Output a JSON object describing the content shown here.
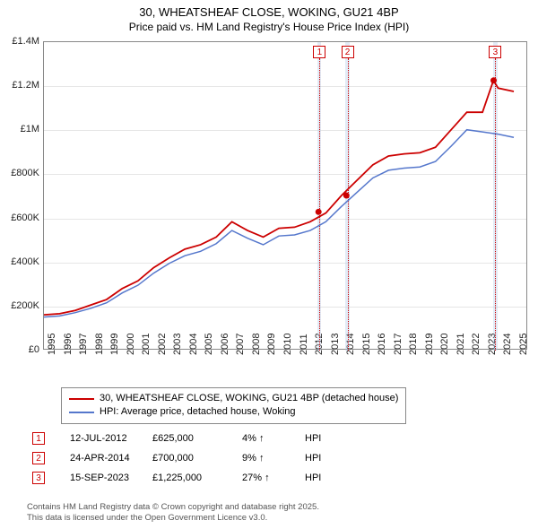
{
  "title": "30, WHEATSHEAF CLOSE, WOKING, GU21 4BP",
  "subtitle": "Price paid vs. HM Land Registry's House Price Index (HPI)",
  "chart": {
    "type": "line",
    "x_years": [
      1995,
      1996,
      1997,
      1998,
      1999,
      2000,
      2001,
      2002,
      2003,
      2004,
      2005,
      2006,
      2007,
      2008,
      2009,
      2010,
      2011,
      2012,
      2013,
      2014,
      2015,
      2016,
      2017,
      2018,
      2019,
      2020,
      2021,
      2022,
      2023,
      2024,
      2025
    ],
    "ylim": [
      0,
      1400000
    ],
    "ytick_step": 200000,
    "ytick_labels": [
      "£0",
      "£200K",
      "£400K",
      "£600K",
      "£800K",
      "£1M",
      "£1.2M",
      "£1.4M"
    ],
    "xlim": [
      1995,
      2025.8
    ],
    "background_color": "#ffffff",
    "grid_color": "#e6e6e6",
    "border_color": "#888888",
    "series": [
      {
        "name": "property",
        "label": "30, WHEATSHEAF CLOSE, WOKING, GU21 4BP (detached house)",
        "color": "#cc0000",
        "width": 1.8,
        "points": [
          [
            1995,
            155000
          ],
          [
            1996,
            160000
          ],
          [
            1997,
            175000
          ],
          [
            1998,
            200000
          ],
          [
            1999,
            225000
          ],
          [
            2000,
            275000
          ],
          [
            2001,
            310000
          ],
          [
            2002,
            370000
          ],
          [
            2003,
            415000
          ],
          [
            2004,
            455000
          ],
          [
            2005,
            475000
          ],
          [
            2006,
            510000
          ],
          [
            2007,
            580000
          ],
          [
            2008,
            540000
          ],
          [
            2009,
            510000
          ],
          [
            2010,
            550000
          ],
          [
            2011,
            555000
          ],
          [
            2012,
            580000
          ],
          [
            2013,
            620000
          ],
          [
            2014,
            700000
          ],
          [
            2015,
            770000
          ],
          [
            2016,
            840000
          ],
          [
            2017,
            880000
          ],
          [
            2018,
            890000
          ],
          [
            2019,
            895000
          ],
          [
            2020,
            920000
          ],
          [
            2021,
            1000000
          ],
          [
            2022,
            1080000
          ],
          [
            2023,
            1080000
          ],
          [
            2023.7,
            1225000
          ],
          [
            2024,
            1190000
          ],
          [
            2025,
            1175000
          ]
        ]
      },
      {
        "name": "hpi",
        "label": "HPI: Average price, detached house, Woking",
        "color": "#5577cc",
        "width": 1.5,
        "points": [
          [
            1995,
            145000
          ],
          [
            1996,
            150000
          ],
          [
            1997,
            165000
          ],
          [
            1998,
            185000
          ],
          [
            1999,
            210000
          ],
          [
            2000,
            255000
          ],
          [
            2001,
            290000
          ],
          [
            2002,
            345000
          ],
          [
            2003,
            390000
          ],
          [
            2004,
            425000
          ],
          [
            2005,
            445000
          ],
          [
            2006,
            480000
          ],
          [
            2007,
            540000
          ],
          [
            2008,
            505000
          ],
          [
            2009,
            475000
          ],
          [
            2010,
            515000
          ],
          [
            2011,
            520000
          ],
          [
            2012,
            540000
          ],
          [
            2013,
            580000
          ],
          [
            2014,
            650000
          ],
          [
            2015,
            715000
          ],
          [
            2016,
            780000
          ],
          [
            2017,
            815000
          ],
          [
            2018,
            825000
          ],
          [
            2019,
            830000
          ],
          [
            2020,
            855000
          ],
          [
            2021,
            925000
          ],
          [
            2022,
            1000000
          ],
          [
            2023,
            990000
          ],
          [
            2024,
            980000
          ],
          [
            2025,
            965000
          ]
        ]
      }
    ],
    "sale_markers": [
      {
        "n": "1",
        "year": 2012.53,
        "price": 625000,
        "color": "#cc0000"
      },
      {
        "n": "2",
        "year": 2014.31,
        "price": 700000,
        "color": "#cc0000"
      },
      {
        "n": "3",
        "year": 2023.71,
        "price": 1225000,
        "color": "#cc0000"
      }
    ],
    "bands": [
      {
        "from": 2012.4,
        "to": 2012.65,
        "color": "#c9dced"
      },
      {
        "from": 2014.15,
        "to": 2014.45,
        "color": "#c9dced"
      },
      {
        "from": 2023.55,
        "to": 2023.85,
        "color": "#c9dced"
      }
    ]
  },
  "legend": {
    "series1_label": "30, WHEATSHEAF CLOSE, WOKING, GU21 4BP (detached house)",
    "series2_label": "HPI: Average price, detached house, Woking"
  },
  "sales": [
    {
      "n": "1",
      "date": "12-JUL-2012",
      "price": "£625,000",
      "diff": "4%",
      "arrow": "↑",
      "vs": "HPI",
      "color": "#cc0000"
    },
    {
      "n": "2",
      "date": "24-APR-2014",
      "price": "£700,000",
      "diff": "9%",
      "arrow": "↑",
      "vs": "HPI",
      "color": "#cc0000"
    },
    {
      "n": "3",
      "date": "15-SEP-2023",
      "price": "£1,225,000",
      "diff": "27%",
      "arrow": "↑",
      "vs": "HPI",
      "color": "#cc0000"
    }
  ],
  "footer": {
    "line1": "Contains HM Land Registry data © Crown copyright and database right 2025.",
    "line2": "This data is licensed under the Open Government Licence v3.0."
  }
}
